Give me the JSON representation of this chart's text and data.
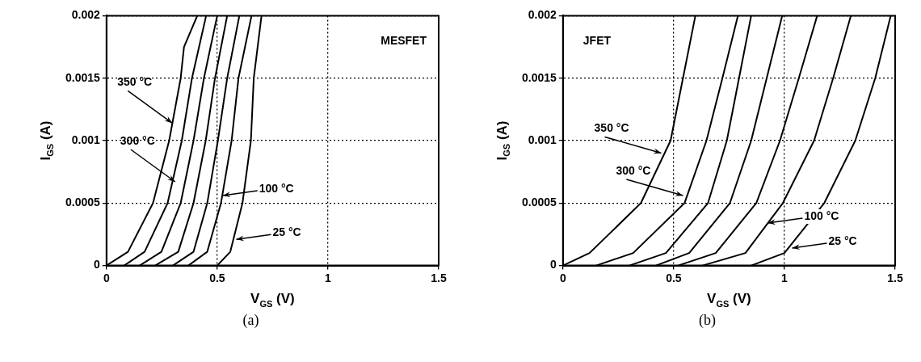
{
  "chart_data": [
    {
      "type": "line",
      "title": "(a)",
      "xlabel": "V$_{GS}$ (V)",
      "ylabel": "I$_{GS}$ (A)",
      "xlim": [
        0,
        1.5
      ],
      "ylim": [
        0,
        0.002
      ],
      "xticks": [
        0,
        0.5,
        1,
        1.5
      ],
      "yticks": [
        0,
        0.0005,
        0.001,
        0.0015,
        0.002
      ],
      "grid": true,
      "legend": false,
      "marker": "none",
      "line_style": "solid",
      "annotations": [
        "MESFET",
        {
          "text": "350 °C",
          "x": 0.297,
          "y": 0.00114
        },
        {
          "text": "300 °C",
          "x": 0.31,
          "y": 0.00067
        },
        {
          "text": "100 °C",
          "x": 0.525,
          "y": 0.00056
        },
        {
          "text": "25 °C",
          "x": 0.586,
          "y": 0.00021
        }
      ],
      "series": [
        {
          "color": "#000000",
          "x": [
            0,
            0.097,
            0.21,
            0.283,
            0.335,
            0.35,
            0.41
          ],
          "values": [
            0,
            0.00011,
            0.0005,
            0.001,
            0.0015,
            0.00175,
            0.002
          ]
        },
        {
          "color": "#000000",
          "x": [
            0.08,
            0.172,
            0.276,
            0.34,
            0.386,
            0.45
          ],
          "values": [
            0,
            0.00011,
            0.0005,
            0.001,
            0.0015,
            0.002
          ]
        },
        {
          "color": "#000000",
          "x": [
            0.15,
            0.248,
            0.335,
            0.393,
            0.44,
            0.5
          ],
          "values": [
            0,
            0.00011,
            0.0005,
            0.001,
            0.0015,
            0.002
          ]
        },
        {
          "color": "#000000",
          "x": [
            0.22,
            0.324,
            0.393,
            0.448,
            0.49,
            0.545
          ],
          "values": [
            0,
            0.00011,
            0.0005,
            0.001,
            0.0015,
            0.002
          ]
        },
        {
          "color": "#000000",
          "x": [
            0.3,
            0.393,
            0.455,
            0.503,
            0.545,
            0.6
          ],
          "values": [
            0,
            0.00011,
            0.0005,
            0.001,
            0.0015,
            0.002
          ]
        },
        {
          "color": "#000000",
          "x": [
            0.37,
            0.455,
            0.517,
            0.565,
            0.596,
            0.655
          ],
          "values": [
            0,
            0.00011,
            0.0005,
            0.001,
            0.0015,
            0.002
          ]
        },
        {
          "color": "#000000",
          "x": [
            0.5,
            0.559,
            0.614,
            0.652,
            0.665,
            0.7
          ],
          "values": [
            0,
            0.00011,
            0.0005,
            0.001,
            0.0015,
            0.002
          ]
        }
      ]
    },
    {
      "type": "line",
      "title": "(b)",
      "xlabel": "V$_{GS}$ (V)",
      "ylabel": "I$_{GS}$ (A)",
      "xlim": [
        0,
        1.5
      ],
      "ylim": [
        0,
        0.002
      ],
      "xticks": [
        0,
        0.5,
        1,
        1.5
      ],
      "yticks": [
        0,
        0.0005,
        0.001,
        0.0015,
        0.002
      ],
      "grid": true,
      "legend": false,
      "marker": "none",
      "line_style": "solid",
      "annotations": [
        "JFET",
        {
          "text": "350 °C",
          "x": 0.444,
          "y": 0.0009
        },
        {
          "text": "300 °C",
          "x": 0.542,
          "y": 0.00056
        },
        {
          "text": "100 °C",
          "x": 0.925,
          "y": 0.00034
        },
        {
          "text": "25 °C",
          "x": 1.035,
          "y": 0.00014
        }
      ],
      "series": [
        {
          "color": "#000000",
          "x": [
            0,
            0.12,
            0.352,
            0.486,
            0.542,
            0.598
          ],
          "values": [
            0,
            0.0001,
            0.0005,
            0.001,
            0.0015,
            0.002
          ]
        },
        {
          "color": "#000000",
          "x": [
            0.15,
            0.317,
            0.549,
            0.648,
            0.72,
            0.79
          ],
          "values": [
            0,
            0.0001,
            0.0005,
            0.001,
            0.0015,
            0.002
          ]
        },
        {
          "color": "#000000",
          "x": [
            0.3,
            0.465,
            0.655,
            0.74,
            0.795,
            0.85
          ],
          "values": [
            0,
            0.0001,
            0.0005,
            0.001,
            0.0015,
            0.002
          ]
        },
        {
          "color": "#000000",
          "x": [
            0.42,
            0.57,
            0.754,
            0.85,
            0.92,
            0.99
          ],
          "values": [
            0,
            0.0001,
            0.0005,
            0.001,
            0.0015,
            0.002
          ]
        },
        {
          "color": "#000000",
          "x": [
            0.52,
            0.69,
            0.873,
            0.98,
            1.065,
            1.148
          ],
          "values": [
            0,
            0.0001,
            0.0005,
            0.001,
            0.0015,
            0.002
          ]
        },
        {
          "color": "#000000",
          "x": [
            0.63,
            0.824,
            0.993,
            1.134,
            1.22,
            1.3
          ],
          "values": [
            0,
            0.0001,
            0.0005,
            0.001,
            0.0015,
            0.002
          ]
        },
        {
          "color": "#000000",
          "x": [
            0.85,
            1.0,
            1.18,
            1.32,
            1.41,
            1.48
          ],
          "values": [
            0,
            0.0001,
            0.0005,
            0.001,
            0.0015,
            0.002
          ]
        }
      ]
    }
  ]
}
